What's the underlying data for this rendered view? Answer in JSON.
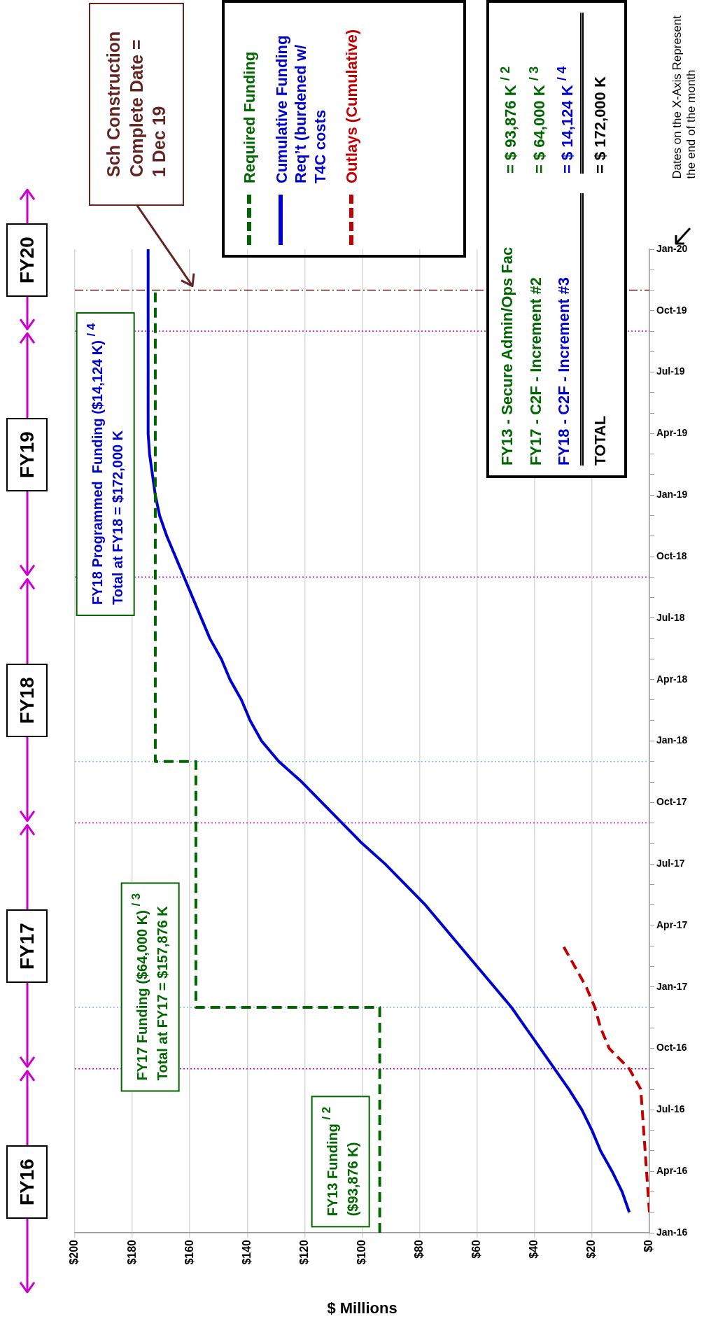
{
  "chart_data": {
    "type": "line",
    "orientation": "horizontal",
    "xlabel": "$ Millions",
    "legend": "top",
    "grid": "x",
    "marker": "none",
    "ylim": [
      "2016-01",
      "2020-01"
    ],
    "yticks": [
      {
        "value": "2016-01",
        "label": "Jan-16"
      },
      {
        "value": "2016-02",
        "label": null
      },
      {
        "value": "2016-03",
        "label": null
      },
      {
        "value": "2016-04",
        "label": "Apr-16"
      },
      {
        "value": "2016-05",
        "label": null
      },
      {
        "value": "2016-06",
        "label": null
      },
      {
        "value": "2016-07",
        "label": "Jul-16"
      },
      {
        "value": "2016-08",
        "label": null
      },
      {
        "value": "2016-09",
        "label": null
      },
      {
        "value": "2016-10",
        "label": "Oct-16"
      },
      {
        "value": "2016-11",
        "label": null
      },
      {
        "value": "2016-12",
        "label": null
      },
      {
        "value": "2017-01",
        "label": "Jan-17"
      },
      {
        "value": "2017-02",
        "label": null
      },
      {
        "value": "2017-03",
        "label": null
      },
      {
        "value": "2017-04",
        "label": "Apr-17"
      },
      {
        "value": "2017-05",
        "label": null
      },
      {
        "value": "2017-06",
        "label": null
      },
      {
        "value": "2017-07",
        "label": "Jul-17"
      },
      {
        "value": "2017-08",
        "label": null
      },
      {
        "value": "2017-09",
        "label": null
      },
      {
        "value": "2017-10",
        "label": "Oct-17"
      },
      {
        "value": "2017-11",
        "label": null
      },
      {
        "value": "2017-12",
        "label": null
      },
      {
        "value": "2018-01",
        "label": "Jan-18"
      },
      {
        "value": "2018-02",
        "label": null
      },
      {
        "value": "2018-03",
        "label": null
      },
      {
        "value": "2018-04",
        "label": "Apr-18"
      },
      {
        "value": "2018-05",
        "label": null
      },
      {
        "value": "2018-06",
        "label": null
      },
      {
        "value": "2018-07",
        "label": "Jul-18"
      },
      {
        "value": "2018-08",
        "label": null
      },
      {
        "value": "2018-09",
        "label": null
      },
      {
        "value": "2018-10",
        "label": "Oct-18"
      },
      {
        "value": "2018-11",
        "label": null
      },
      {
        "value": "2018-12",
        "label": null
      },
      {
        "value": "2019-01",
        "label": "Jan-19"
      },
      {
        "value": "2019-02",
        "label": null
      },
      {
        "value": "2019-03",
        "label": null
      },
      {
        "value": "2019-04",
        "label": "Apr-19"
      },
      {
        "value": "2019-05",
        "label": null
      },
      {
        "value": "2019-06",
        "label": null
      },
      {
        "value": "2019-07",
        "label": "Jul-19"
      },
      {
        "value": "2019-08",
        "label": null
      },
      {
        "value": "2019-09",
        "label": null
      },
      {
        "value": "2019-10",
        "label": "Oct-19"
      },
      {
        "value": "2019-11",
        "label": null
      },
      {
        "value": "2019-12",
        "label": null
      },
      {
        "value": "2020-01",
        "label": "Jan-20"
      }
    ],
    "xlim": [
      200,
      0
    ],
    "xticks": [
      {
        "value": 200,
        "label": "$200"
      },
      {
        "value": 180,
        "label": "$180"
      },
      {
        "value": 160,
        "label": "$160"
      },
      {
        "value": 140,
        "label": "$140"
      },
      {
        "value": 120,
        "label": "$120"
      },
      {
        "value": 100,
        "label": "$100"
      },
      {
        "value": 80,
        "label": "$80"
      },
      {
        "value": 60,
        "label": "$60"
      },
      {
        "value": 40,
        "label": "$40"
      },
      {
        "value": 20,
        "label": "$20"
      },
      {
        "value": 0,
        "label": "$0"
      }
    ],
    "series": [
      {
        "name": "Required Funding",
        "type": "step",
        "color": "#006600",
        "line_style": "dashed",
        "x": [
          "2016-01",
          "2016-12",
          "2017-12",
          "2019-11"
        ],
        "values": [
          93.876,
          157.876,
          172,
          172
        ]
      },
      {
        "name": "Cumulative Funding Req’t (burdened w/ T4C costs",
        "color": "#0000cc",
        "line_style": "solid",
        "x": [
          "2016-02",
          "2016-03",
          "2016-04",
          "2016-05",
          "2016-06",
          "2016-07",
          "2016-08",
          "2016-09",
          "2016-10",
          "2016-11",
          "2016-12",
          "2017-01",
          "2017-02",
          "2017-03",
          "2017-04",
          "2017-05",
          "2017-06",
          "2017-07",
          "2017-08",
          "2017-09",
          "2017-10",
          "2017-11",
          "2017-12",
          "2018-01",
          "2018-02",
          "2018-03",
          "2018-04",
          "2018-05",
          "2018-06",
          "2018-07",
          "2018-08",
          "2018-09",
          "2018-10",
          "2018-11",
          "2018-12",
          "2019-01",
          "2019-02",
          "2019-03",
          "2019-04",
          "2020-01"
        ],
        "values": [
          7,
          9.5,
          13,
          17,
          20,
          23.5,
          28,
          33,
          38,
          43,
          48,
          54,
          60,
          66,
          72,
          78,
          85,
          92,
          100,
          107,
          114,
          121,
          129,
          135,
          139,
          142,
          146,
          149,
          153,
          156,
          159,
          162,
          165,
          168,
          170.5,
          172,
          173,
          174,
          174.5,
          174.5
        ]
      },
      {
        "name": "Outlays (Cumulative)",
        "color": "#c00000",
        "line_style": "dashed",
        "x": [
          "2016-02",
          "2016-03",
          "2016-04",
          "2016-05",
          "2016-06",
          "2016-07",
          "2016-08",
          "2016-09",
          "2016-10",
          "2016-11",
          "2016-12",
          "2017-01",
          "2017-02",
          "2017-03"
        ],
        "values": [
          0,
          0.5,
          1,
          1.5,
          2,
          2.5,
          3,
          7,
          14,
          17,
          19,
          22,
          26,
          30
        ]
      }
    ],
    "ref_lines": [
      {
        "axis": "y",
        "value": "2016-09",
        "color": "#cc00cc",
        "line_style": "dotted"
      },
      {
        "axis": "y",
        "value": "2017-09",
        "color": "#cc00cc",
        "line_style": "dotted"
      },
      {
        "axis": "y",
        "value": "2018-09",
        "color": "#cc00cc",
        "line_style": "dotted"
      },
      {
        "axis": "y",
        "value": "2019-09",
        "color": "#cc00cc",
        "line_style": "dotted"
      },
      {
        "axis": "y",
        "value": "2016-12",
        "color": "#8db3e2",
        "line_style": "dotted"
      },
      {
        "axis": "y",
        "value": "2017-12",
        "color": "#8db3e2",
        "line_style": "dotted"
      },
      {
        "axis": "y",
        "value": "2019-11",
        "color": "#632523",
        "line_style": "dashed",
        "label": "Sch Construction\nComplete Date =\n1 Dec 19"
      }
    ],
    "annotations": [
      "FY16",
      "FY17",
      "FY18",
      "FY19",
      "FY20",
      "FY13 Funding $^{/ 2}$\n($93,876 K)",
      "FY17 Funding ($64,000 K) $^{/ 3}$\nTotal at FY17 = $157,876 K",
      "FY18 Programmed  Funding ($14,124 K) $^{/ 4}$\nTotal at FY18 = $172,000 K",
      "FY13 - Secure Admin/Ops Fac",
      "FY17 - C2F - Increment #2",
      "FY18 - C2F - Increment #3",
      "TOTAL",
      "=  $ 93,876 K $^{/ 2}$",
      "=  $ 64,000 K $^{/ 3}$",
      "=  $ 14,124 K $^{/ 4}$",
      "= $ 172,000 K",
      "Dates on the X-Axis Represent\nthe end of the month"
    ]
  }
}
